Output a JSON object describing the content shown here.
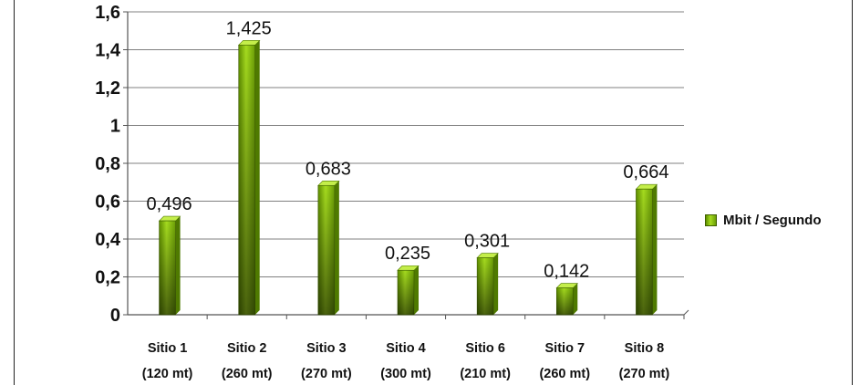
{
  "chart_data": {
    "type": "bar",
    "categories": [
      [
        "Sitio 1",
        "(120 mt)"
      ],
      [
        "Sitio 2",
        "(260 mt)"
      ],
      [
        "Sitio 3",
        "(270 mt)"
      ],
      [
        "Sitio 4",
        "(300 mt)"
      ],
      [
        "Sitio 6",
        "(210 mt)"
      ],
      [
        "Sitio 7",
        "(260 mt)"
      ],
      [
        "Sitio 8",
        "(270 mt)"
      ]
    ],
    "series": [
      {
        "name": "Mbit / Segundo",
        "values": [
          0.496,
          1.425,
          0.683,
          0.235,
          0.301,
          0.142,
          0.664
        ],
        "labels": [
          "0,496",
          "1,425",
          "0,683",
          "0,235",
          "0,301",
          "0,142",
          "0,664"
        ]
      }
    ],
    "ylim": [
      0,
      1.6
    ],
    "yticks": [
      0,
      0.2,
      0.4,
      0.6,
      0.8,
      1,
      1.2,
      1.4,
      1.6
    ],
    "ytick_labels": [
      "0",
      "0,2",
      "0,4",
      "0,6",
      "0,8",
      "1",
      "1,2",
      "1,4",
      "1,6"
    ],
    "title": "",
    "xlabel": "",
    "ylabel": "",
    "grid": true,
    "legend_position": "right",
    "colors": {
      "bar_light": "#a6dc1f",
      "bar_dark": "#4f7a00",
      "grid": "#808080"
    }
  }
}
